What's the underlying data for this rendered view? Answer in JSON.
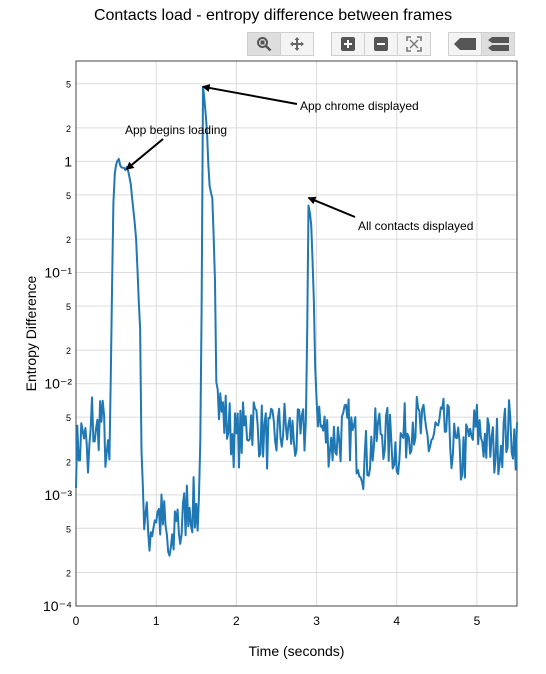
{
  "title": "Contacts load - entropy difference between frames",
  "toolbar": [
    {
      "name": "zoom-icon",
      "active": true
    },
    {
      "name": "pan-icon",
      "active": false
    },
    {
      "name": "zoom-in-icon",
      "active": false
    },
    {
      "name": "zoom-out-icon",
      "active": false
    },
    {
      "name": "autoscale-icon",
      "active": false
    },
    {
      "name": "hover-closest-icon",
      "active": false
    },
    {
      "name": "hover-compare-icon",
      "active": false
    }
  ],
  "colors": {
    "line": "#1f77b4",
    "grid": "#dcdcdc",
    "toolbar_active": "#dedede"
  },
  "chart_data": {
    "type": "line",
    "title": "Contacts load - entropy difference between frames",
    "xlabel": "Time (seconds)",
    "ylabel": "Entropy Difference",
    "xlim": [
      0,
      5.5
    ],
    "ylim": [
      0.0001,
      8
    ],
    "yscale": "log",
    "grid": true,
    "x_ticks": [
      "0",
      "1",
      "2",
      "3",
      "4",
      "5"
    ],
    "y_ticks_major": [
      "10⁻⁴",
      "10⁻³",
      "10⁻²",
      "10⁻¹",
      "1"
    ],
    "y_ticks_minor": [
      "2",
      "5"
    ],
    "keypoints": [
      [
        0.0,
        0.0022
      ],
      [
        0.1,
        0.004
      ],
      [
        0.15,
        0.0015
      ],
      [
        0.2,
        0.005
      ],
      [
        0.25,
        0.003
      ],
      [
        0.3,
        0.0055
      ],
      [
        0.35,
        0.0035
      ],
      [
        0.38,
        0.0025
      ],
      [
        0.4,
        0.0018
      ],
      [
        0.42,
        0.0016
      ],
      [
        0.44,
        0.02
      ],
      [
        0.46,
        0.3
      ],
      [
        0.48,
        0.7
      ],
      [
        0.5,
        0.95
      ],
      [
        0.52,
        1.05
      ],
      [
        0.55,
        0.95
      ],
      [
        0.6,
        0.88
      ],
      [
        0.65,
        0.82
      ],
      [
        0.7,
        0.5
      ],
      [
        0.75,
        0.2
      ],
      [
        0.8,
        0.03
      ],
      [
        0.82,
        0.003
      ],
      [
        0.85,
        0.0006
      ],
      [
        0.9,
        0.00045
      ],
      [
        1.0,
        0.0007
      ],
      [
        1.1,
        0.00055
      ],
      [
        1.15,
        0.0003
      ],
      [
        1.2,
        0.00025
      ],
      [
        1.25,
        0.0008
      ],
      [
        1.3,
        0.00045
      ],
      [
        1.4,
        0.0009
      ],
      [
        1.5,
        0.0007
      ],
      [
        1.53,
        0.0008
      ],
      [
        1.56,
        0.005
      ],
      [
        1.58,
        4.6
      ],
      [
        1.6,
        3.5
      ],
      [
        1.63,
        2.0
      ],
      [
        1.66,
        0.6
      ],
      [
        1.7,
        0.5
      ],
      [
        1.73,
        0.12
      ],
      [
        1.76,
        0.008
      ],
      [
        1.8,
        0.006
      ],
      [
        2.0,
        0.003
      ],
      [
        2.2,
        0.005
      ],
      [
        2.4,
        0.003
      ],
      [
        2.6,
        0.004
      ],
      [
        2.8,
        0.003
      ],
      [
        2.87,
        0.004
      ],
      [
        2.9,
        0.4
      ],
      [
        2.93,
        0.3
      ],
      [
        2.96,
        0.08
      ],
      [
        3.0,
        0.008
      ],
      [
        3.05,
        0.004
      ],
      [
        3.2,
        0.003
      ],
      [
        3.4,
        0.004
      ],
      [
        3.6,
        0.002
      ],
      [
        3.8,
        0.004
      ],
      [
        4.0,
        0.0025
      ],
      [
        4.2,
        0.005
      ],
      [
        4.4,
        0.003
      ],
      [
        4.6,
        0.004
      ],
      [
        4.8,
        0.002
      ],
      [
        5.0,
        0.004
      ],
      [
        5.2,
        0.0025
      ],
      [
        5.4,
        0.004
      ],
      [
        5.5,
        0.003
      ]
    ],
    "annotations": [
      {
        "text": "App begins loading",
        "point": [
          0.63,
          0.85
        ]
      },
      {
        "text": "App chrome displayed",
        "point": [
          1.58,
          4.7
        ]
      },
      {
        "text": "All contacts displayed",
        "point": [
          2.9,
          0.47
        ]
      }
    ]
  }
}
